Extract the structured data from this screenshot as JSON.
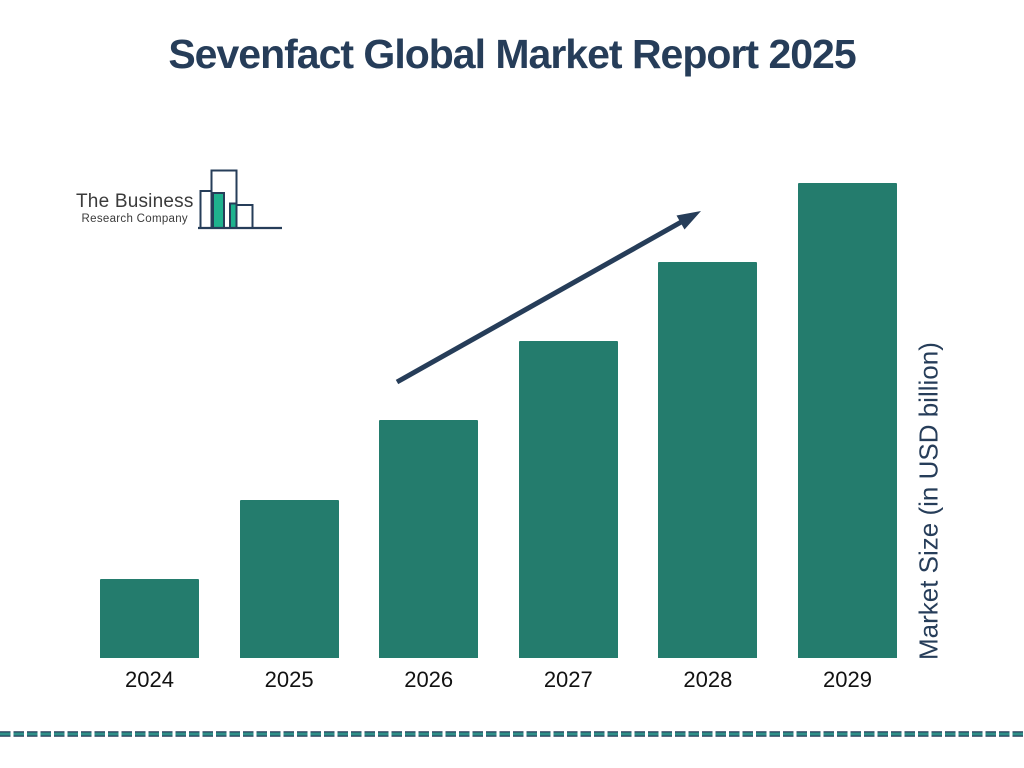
{
  "page": {
    "title": "Sevenfact Global Market Report 2025"
  },
  "logo": {
    "line1": "The Business",
    "line2": "Research Company"
  },
  "chart_data": {
    "type": "bar",
    "title": "Sevenfact Global Market Report 2025",
    "categories": [
      "2024",
      "2025",
      "2026",
      "2027",
      "2028",
      "2029"
    ],
    "values": [
      1,
      2,
      3,
      4,
      5,
      6
    ],
    "values_estimated": true,
    "xlabel": "",
    "ylabel": "Market Size (in USD billion)",
    "ylim": [
      0,
      6.6
    ],
    "grid": false,
    "legend": "none",
    "bar_color": "#247c6d",
    "annotations": [
      "upward trend arrow from above 2026 bar to above 2028 bar"
    ]
  },
  "colors": {
    "navy": "#263d59",
    "bar_teal": "#247c6d",
    "logo_teal": "#1eb28e",
    "dash_teal": "#2f9089"
  }
}
